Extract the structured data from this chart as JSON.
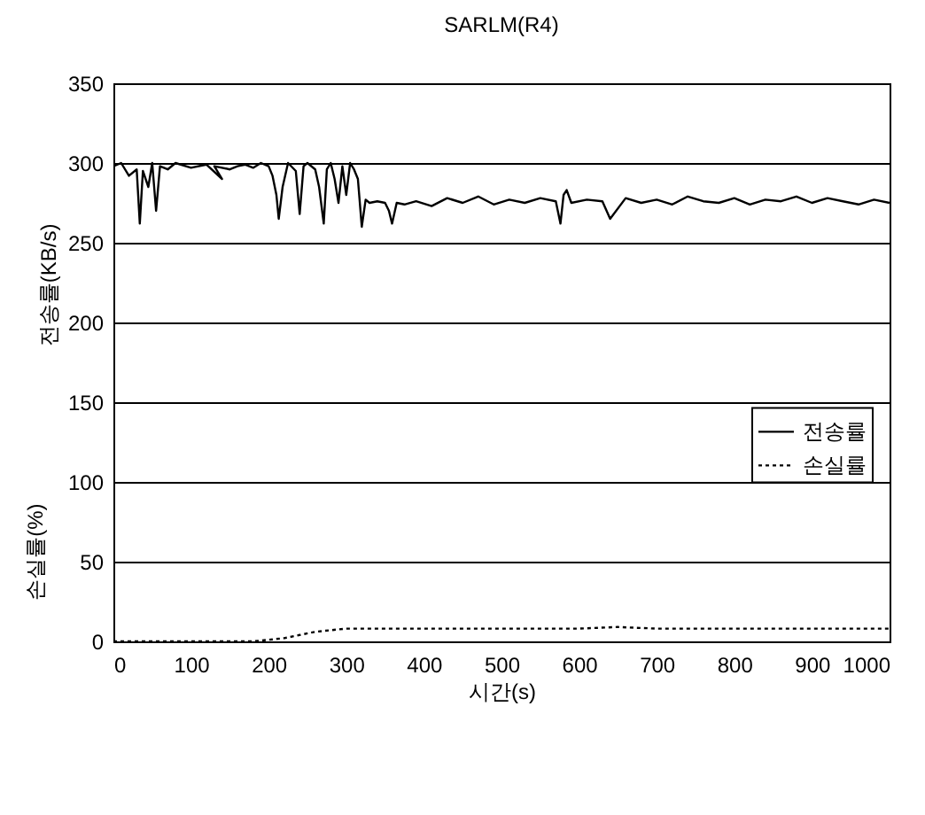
{
  "chart_data": {
    "type": "line",
    "title": "SARLM(R4)",
    "xlabel": "시간(s)",
    "ylabel": "전송률(KB/s)",
    "annotations": [
      "손실률(%)"
    ],
    "xlim": [
      0,
      1000
    ],
    "xticks": [
      0,
      100,
      200,
      300,
      400,
      500,
      600,
      700,
      800,
      900,
      1000
    ],
    "ylim": [
      0,
      350
    ],
    "yticks": [
      0,
      50,
      100,
      150,
      200,
      250,
      300,
      350
    ],
    "grid": "y",
    "legend": "right",
    "series": [
      {
        "name": "전송률",
        "color": "#000000",
        "line_style": "solid",
        "x": [
          0,
          10,
          20,
          30,
          34,
          38,
          45,
          50,
          55,
          60,
          70,
          80,
          100,
          120,
          140,
          130,
          150,
          160,
          170,
          180,
          190,
          200,
          205,
          210,
          213,
          218,
          225,
          235,
          240,
          245,
          250,
          260,
          265,
          271,
          275,
          280,
          285,
          290,
          295,
          300,
          305,
          310,
          315,
          320,
          325,
          330,
          340,
          350,
          355,
          359,
          365,
          375,
          390,
          410,
          430,
          450,
          470,
          490,
          510,
          530,
          550,
          570,
          576,
          580,
          584,
          590,
          610,
          630,
          640,
          660,
          680,
          700,
          720,
          740,
          760,
          780,
          800,
          820,
          840,
          860,
          880,
          900,
          920,
          940,
          960,
          980,
          1000
        ],
        "values": [
          298,
          300,
          292,
          296,
          262,
          295,
          285,
          300,
          270,
          298,
          296,
          300,
          297,
          299,
          290,
          298,
          296,
          298,
          299,
          297,
          300,
          298,
          292,
          280,
          265,
          285,
          300,
          295,
          268,
          298,
          300,
          296,
          285,
          262,
          296,
          300,
          290,
          275,
          298,
          280,
          300,
          296,
          290,
          260,
          277,
          275,
          276,
          275,
          270,
          262,
          275,
          274,
          276,
          273,
          278,
          275,
          279,
          274,
          277,
          275,
          278,
          276,
          262,
          280,
          283,
          275,
          277,
          276,
          265,
          278,
          275,
          277,
          274,
          279,
          276,
          275,
          278,
          274,
          277,
          276,
          279,
          275,
          278,
          276,
          274,
          277,
          275
        ]
      },
      {
        "name": "손실률",
        "color": "#000000",
        "line_style": "dotted",
        "x": [
          0,
          100,
          180,
          200,
          220,
          240,
          260,
          280,
          300,
          350,
          400,
          450,
          500,
          550,
          600,
          650,
          700,
          750,
          800,
          850,
          900,
          950,
          1000
        ],
        "values": [
          0,
          0,
          0,
          1,
          2,
          4,
          6,
          7,
          8,
          8,
          8,
          8,
          8,
          8,
          8,
          9,
          8,
          8,
          8,
          8,
          8,
          8,
          8
        ]
      }
    ]
  }
}
